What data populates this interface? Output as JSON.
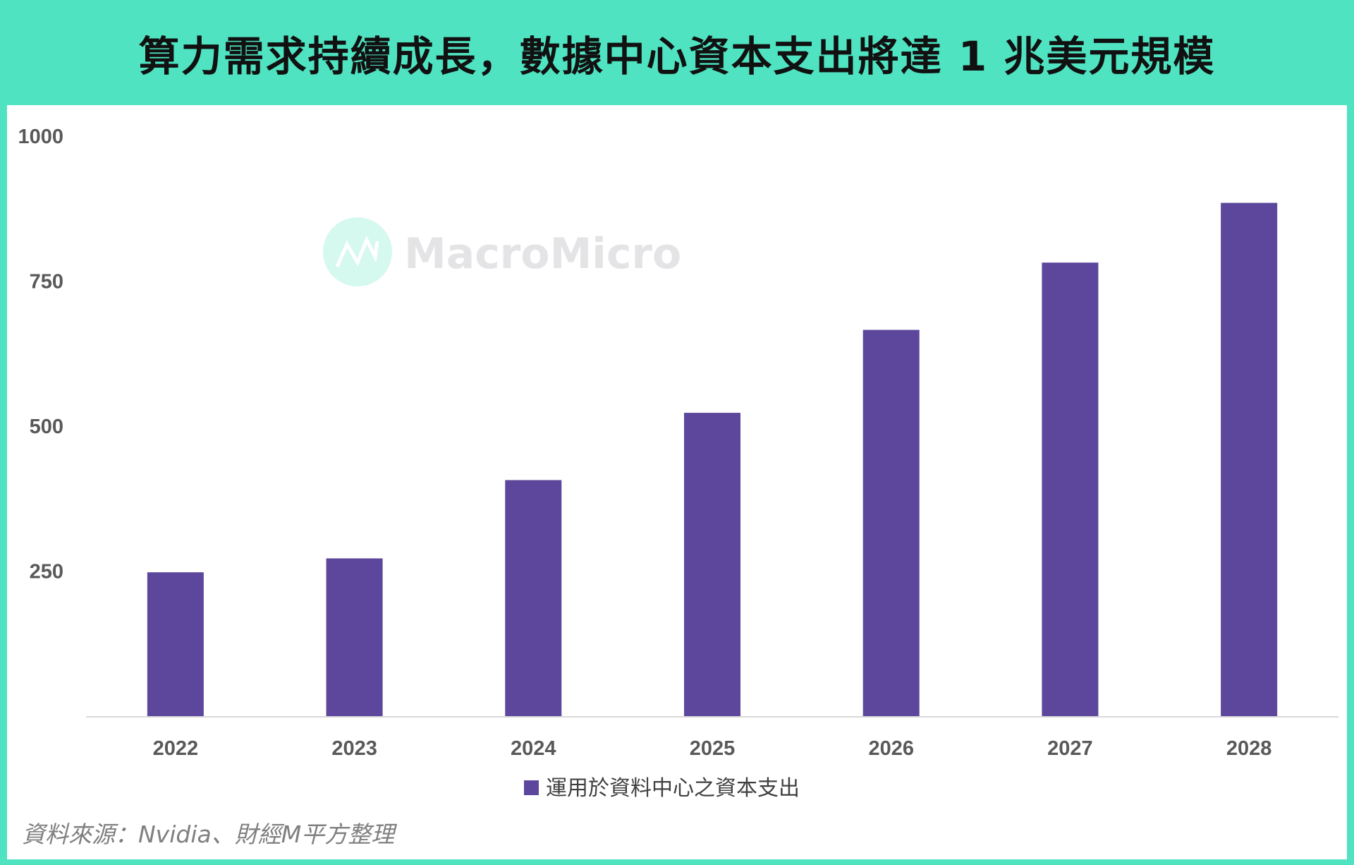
{
  "title": "算力需求持續成長，數據中心資本支出將達 1 兆美元規模",
  "watermark": "MacroMicro",
  "source": "資料來源：Nvidia、財經M平方整理",
  "colors": {
    "frame": "#4fe3c1",
    "bar": "#5c479c",
    "axis": "#d9d9d9"
  },
  "chart_data": {
    "type": "bar",
    "title": "",
    "xlabel": "",
    "ylabel": "",
    "categories": [
      "2022",
      "2023",
      "2024",
      "2025",
      "2026",
      "2027",
      "2028"
    ],
    "series": [
      {
        "name": "運用於資料中心之資本支出",
        "values": [
          248,
          272,
          407,
          523,
          666,
          782,
          885
        ]
      }
    ],
    "ylim": [
      0,
      1000
    ],
    "yticks": [
      "250",
      "500",
      "750",
      "1000"
    ],
    "grid": false,
    "legend": "bottom"
  }
}
